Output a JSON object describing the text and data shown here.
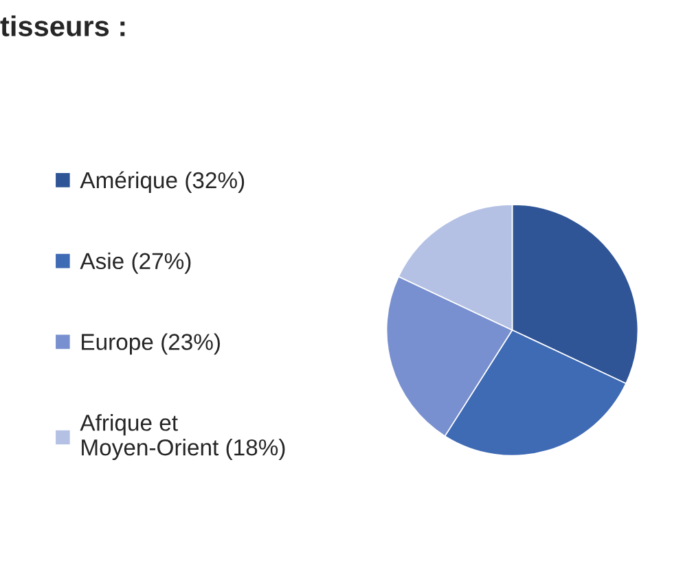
{
  "chart_data": {
    "type": "pie",
    "title": "tisseurs :",
    "categories": [
      "Amérique (32%)",
      "Asie (27%)",
      "Europe (23%)",
      "Afrique et Moyen-Orient (18%)"
    ],
    "values": [
      32,
      27,
      23,
      18
    ],
    "colors": [
      "#2f5597",
      "#3f6ab4",
      "#7890cf",
      "#b4c1e4"
    ],
    "legend": "left"
  }
}
